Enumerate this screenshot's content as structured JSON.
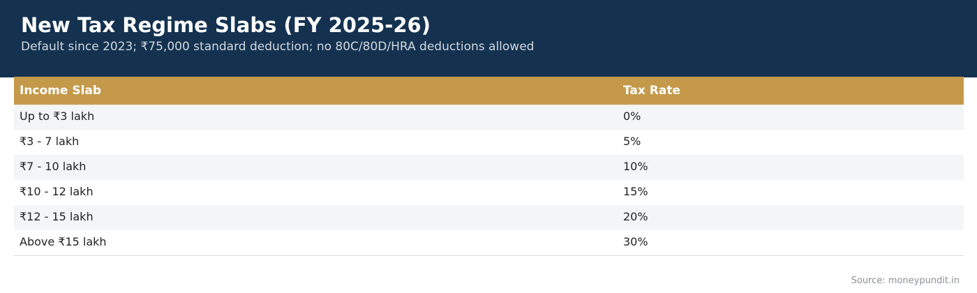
{
  "header": {
    "title": "New Tax Regime Slabs (FY 2025-26)",
    "subtitle": "Default since 2023; ₹75,000 standard deduction; no 80C/80D/HRA deductions allowed"
  },
  "table": {
    "columns": [
      "Income Slab",
      "Tax Rate"
    ],
    "rows": [
      [
        "Up to ₹3 lakh",
        "0%"
      ],
      [
        "₹3 - 7 lakh",
        "5%"
      ],
      [
        "₹7 - 10 lakh",
        "10%"
      ],
      [
        "₹10 - 12 lakh",
        "15%"
      ],
      [
        "₹12 - 15 lakh",
        "20%"
      ],
      [
        "Above ₹15 lakh",
        "30%"
      ]
    ]
  },
  "footer": {
    "source": "Source: moneypundit.in"
  },
  "colors": {
    "header_bg": "#143250",
    "table_header_bg": "#c49a4a",
    "row_stripe": "#f4f5f7"
  }
}
